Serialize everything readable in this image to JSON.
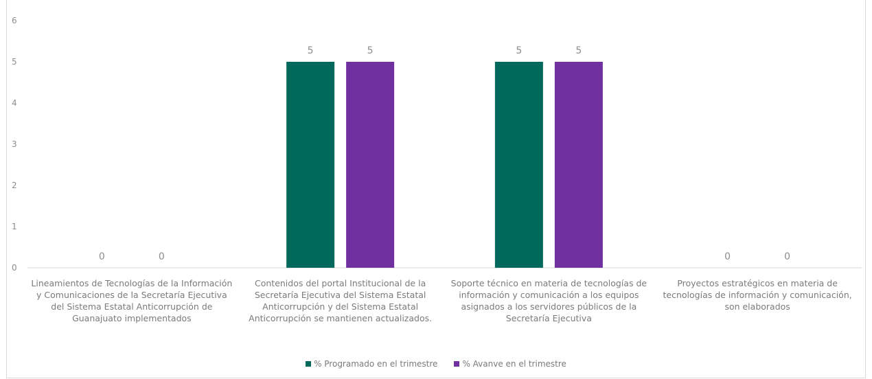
{
  "chart_data": {
    "type": "bar",
    "title": "",
    "categories": [
      "Lineamientos de Tecnologías de la Información y Comunicaciones de la Secretaría Ejecutiva del Sistema Estatal Anticorrupción de Guanajuato implementados",
      "Contenidos del portal Institucional de la Secretaría Ejecutiva del Sistema Estatal Anticorrupción y del Sistema Estatal Anticorrupción se mantienen actualizados.",
      "Soporte técnico en materia de tecnologías de información y comunicación a los equipos asignados a los servidores públicos de la Secretaría Ejecutiva",
      "Proyectos estratégicos en materia de tecnologías de información y comunicación, son elaborados"
    ],
    "series": [
      {
        "name": "% Programado en el trimestre",
        "color": "#00695c",
        "values": [
          0,
          5,
          5,
          0
        ]
      },
      {
        "name": "% Avanve en el trimestre",
        "color": "#7030a0",
        "values": [
          0,
          5,
          5,
          0
        ]
      }
    ],
    "ylim": [
      0,
      6
    ],
    "yticks": [
      0,
      1,
      2,
      3,
      4,
      5,
      6
    ],
    "xlabel": "",
    "ylabel": "",
    "grid": false,
    "legend_position": "bottom"
  }
}
